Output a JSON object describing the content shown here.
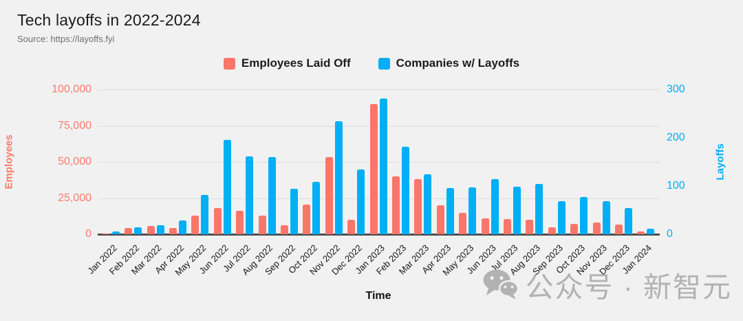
{
  "title": "Tech layoffs in 2022-2024",
  "source": "Source: https://layoffs.fyi",
  "xaxis_title": "Time",
  "watermark": {
    "text": "公众号 · 新智元"
  },
  "colors": {
    "employees": "#fa766a",
    "companies": "#00aff5",
    "background": "#f1f1f1",
    "gridline": "#dcdcdc",
    "axis_line": "#4d4d4d"
  },
  "chart_data": {
    "type": "bar",
    "title": "Tech layoffs in 2022-2024",
    "xlabel": "Time",
    "legend_position": "top-center",
    "grid": true,
    "categories": [
      "Jan 2022",
      "Feb 2022",
      "Mar 2022",
      "Apr 2022",
      "May 2022",
      "Jun 2022",
      "Jul 2022",
      "Aug 2022",
      "Sep 2022",
      "Oct 2022",
      "Nov 2022",
      "Dec 2022",
      "Jan 2023",
      "Feb 2023",
      "Mar 2023",
      "Apr 2023",
      "May 2023",
      "Jun 2023",
      "Jul 2023",
      "Aug 2023",
      "Sep 2023",
      "Oct 2023",
      "Nov 2023",
      "Dec 2023",
      "Jan 2024"
    ],
    "series": [
      {
        "name": "Employees Laid Off",
        "axis": "left",
        "color": "#fa766a",
        "values": [
          600,
          4500,
          5700,
          4500,
          13000,
          18000,
          16000,
          13000,
          6000,
          20700,
          53500,
          10000,
          90000,
          40000,
          38000,
          20000,
          14800,
          11000,
          10600,
          10000,
          4800,
          7200,
          8000,
          6700,
          2100
        ]
      },
      {
        "name": "Companies w/ Layoffs",
        "axis": "right",
        "color": "#00aff5",
        "values": [
          6,
          15,
          18,
          29,
          81,
          196,
          162,
          160,
          95,
          109,
          234,
          134,
          281,
          182,
          125,
          96,
          97,
          115,
          99,
          104,
          69,
          77,
          68,
          55,
          12
        ]
      }
    ],
    "left_axis": {
      "label": "Employees",
      "max": 100000,
      "ticks": [
        "0",
        "25,000",
        "50,000",
        "75,000",
        "100,000"
      ]
    },
    "right_axis": {
      "label": "Layoffs",
      "max": 300,
      "ticks": [
        "0",
        "100",
        "200",
        "300"
      ]
    }
  }
}
